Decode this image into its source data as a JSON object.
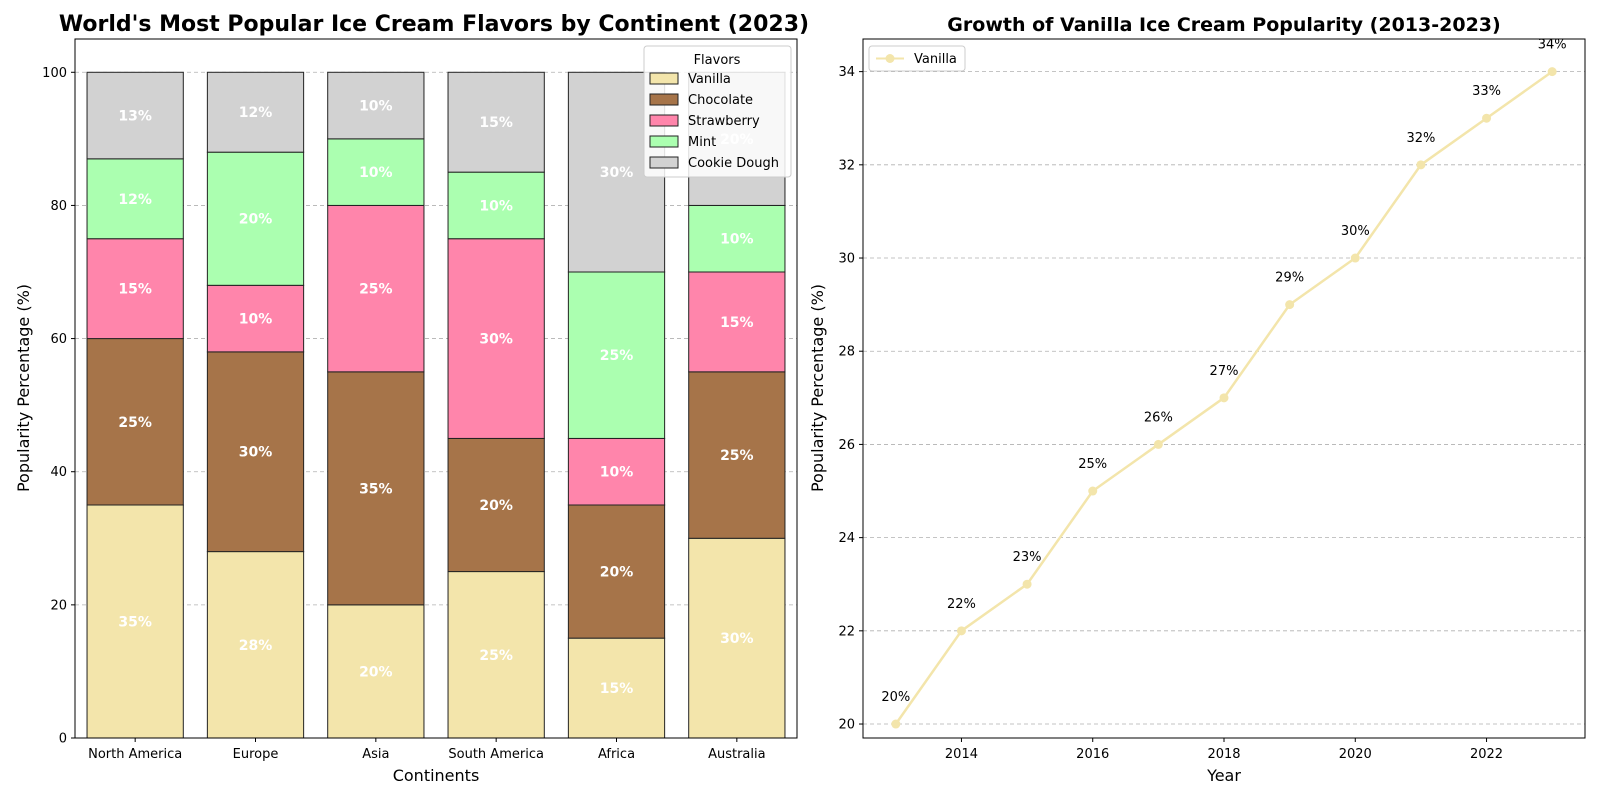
{
  "chart_data": [
    {
      "type": "bar",
      "stacked": true,
      "title": "World's Most Popular Ice Cream Flavors by Continent (2023)",
      "xlabel": "Continents",
      "ylabel": "Popularity Percentage (%)",
      "ylim": [
        0,
        105
      ],
      "yticks": [
        0,
        20,
        40,
        60,
        80,
        100
      ],
      "grid": "y-dashed",
      "categories": [
        "North America",
        "Europe",
        "Asia",
        "South America",
        "Africa",
        "Australia"
      ],
      "legend": {
        "title": "Flavors",
        "placement": "top-right"
      },
      "value_suffix": "%",
      "series": [
        {
          "name": "Vanilla",
          "color": "#F3E5AB",
          "values": [
            35,
            28,
            20,
            25,
            15,
            30
          ]
        },
        {
          "name": "Chocolate",
          "color": "#A67449",
          "values": [
            25,
            30,
            35,
            20,
            20,
            25
          ]
        },
        {
          "name": "Strawberry",
          "color": "#FF85AB",
          "values": [
            15,
            10,
            25,
            30,
            10,
            15
          ]
        },
        {
          "name": "Mint",
          "color": "#ABFFB0",
          "values": [
            12,
            20,
            10,
            10,
            25,
            10
          ]
        },
        {
          "name": "Cookie Dough",
          "color": "#D2D2D2",
          "values": [
            13,
            12,
            10,
            15,
            30,
            20
          ]
        }
      ]
    },
    {
      "type": "line",
      "title": "Growth of Vanilla Ice Cream Popularity (2013-2023)",
      "xlabel": "Year",
      "ylabel": "Popularity Percentage (%)",
      "xlim": [
        2012.5,
        2023.5
      ],
      "ylim": [
        19.7,
        34.7
      ],
      "xticks": [
        2014,
        2016,
        2018,
        2020,
        2022
      ],
      "yticks": [
        20,
        22,
        24,
        26,
        28,
        30,
        32,
        34
      ],
      "grid": "y-dashed",
      "legend": {
        "placement": "top-left"
      },
      "value_suffix": "%",
      "series": [
        {
          "name": "Vanilla",
          "color": "#F3E5AB",
          "x": [
            2013,
            2014,
            2015,
            2016,
            2017,
            2018,
            2019,
            2020,
            2021,
            2022,
            2023
          ],
          "y": [
            20,
            22,
            23,
            25,
            26,
            27,
            29,
            30,
            32,
            33,
            34
          ]
        }
      ]
    }
  ]
}
